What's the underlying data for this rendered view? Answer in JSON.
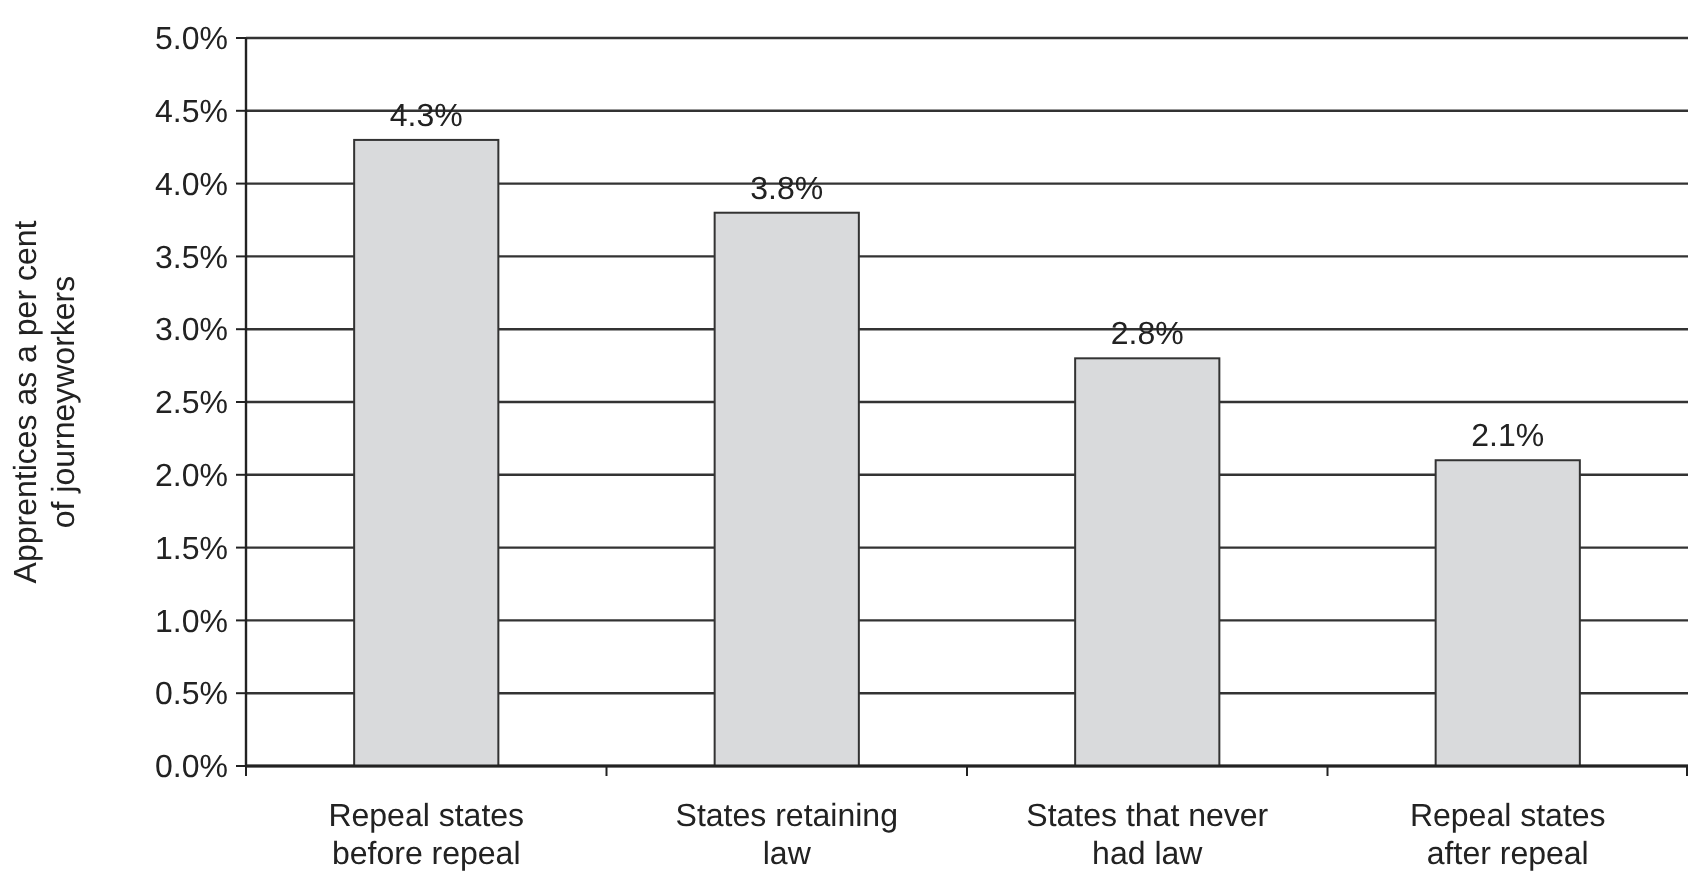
{
  "chart_data": {
    "type": "bar",
    "categories": [
      "Repeal states\nbefore repeal",
      "States retaining\nlaw",
      "States that never\nhad law",
      "Repeal states\nafter repeal"
    ],
    "values": [
      4.3,
      3.8,
      2.8,
      2.1
    ],
    "value_labels": [
      "4.3%",
      "3.8%",
      "2.8%",
      "2.1%"
    ],
    "color": "#d9dadc",
    "ylabel": "Apprentices as a per cent\nof journeyworkers",
    "ylim": [
      0,
      5
    ],
    "yticks": [
      {
        "value": 0,
        "label": "0.0%"
      },
      {
        "value": 0.5,
        "label": "0.5%"
      },
      {
        "value": 1,
        "label": "1.0%"
      },
      {
        "value": 1.5,
        "label": "1.5%"
      },
      {
        "value": 2,
        "label": "2.0%"
      },
      {
        "value": 2.5,
        "label": "2.5%"
      },
      {
        "value": 3,
        "label": "3.0%"
      },
      {
        "value": 3.5,
        "label": "3.5%"
      },
      {
        "value": 4,
        "label": "4.0%"
      },
      {
        "value": 4.5,
        "label": "4.5%"
      },
      {
        "value": 5,
        "label": "5.0%"
      }
    ],
    "grid": "y"
  }
}
